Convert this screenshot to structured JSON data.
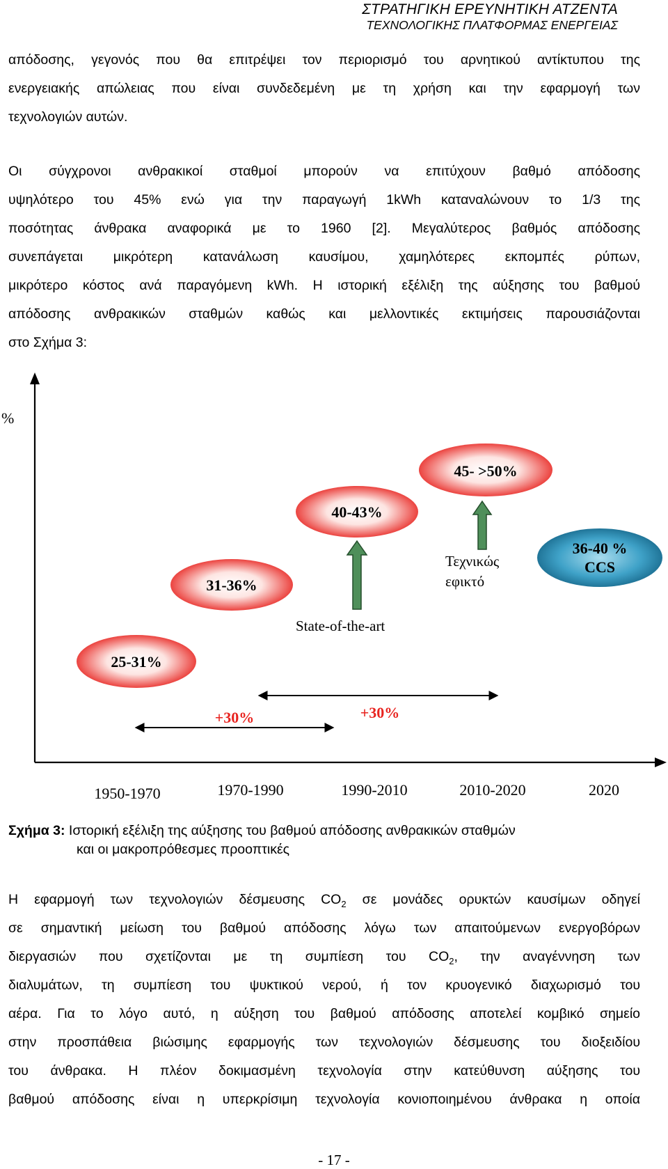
{
  "header": {
    "line1": "ΣΤΡΑΤΗΓΙΚΗ ΕΡΕΥΝΗΤΙΚΗ ΑΤΖΕΝΤΑ",
    "line2": "ΤΕΧΝΟΛΟΓΙΚΗΣ ΠΛΑΤΦΟΡΜΑΣ ΕΝΕΡΓΕΙΑΣ"
  },
  "para1": [
    "απόδοσης, γεγονός που θα επιτρέψει τον περιορισμό του αρνητικού αντίκτυπου της",
    "ενεργειακής απώλειας που είναι συνδεδεμένη με τη χρήση και την εφαρμογή των",
    "τεχνολογιών αυτών."
  ],
  "para2": [
    "Οι σύγχρονοι ανθρακικοί σταθμοί μπορούν να επιτύχουν βαθμό απόδοσης",
    "υψηλότερο του 45% ενώ για την παραγωγή 1kWh καταναλώνουν το 1/3 της",
    "ποσότητας άνθρακα αναφορικά με το 1960 [2]. Μεγαλύτερος βαθμός απόδοσης",
    "συνεπάγεται μικρότερη κατανάλωση καυσίμου, χαμηλότερες εκπομπές ρύπων,",
    "μικρότερο κόστος ανά παραγόμενη kWh. Η ιστορική εξέλιξη της αύξησης του βαθμού",
    "απόδοσης ανθρακικών σταθμών καθώς και μελλοντικές εκτιμήσεις παρουσιάζονται",
    "στο Σχήμα 3:"
  ],
  "figure": {
    "y_axis_label": "%",
    "bubbles": {
      "b1": "25-31%",
      "b2": "31-36%",
      "b3": "40-43%",
      "b4": "45- >50%",
      "b5_line1": "36-40 %",
      "b5_line2": "CCS"
    },
    "annotations": {
      "state_of_art": "State-of-the-art",
      "feasible_line1": "Τεχνικώς",
      "feasible_line2": "εφικτό",
      "gain1": "+30%",
      "gain2": "+30%"
    },
    "periods": [
      "1950-1970",
      "1970-1990",
      "1990-2010",
      "2010-2020",
      "2020"
    ],
    "colors": {
      "red_bubble": "#e8231f",
      "blue_bubble": "#1a7fa8",
      "green_arrow": "#4f8f5a"
    }
  },
  "caption": {
    "label": "Σχήμα 3:",
    "line1": " Ιστορική εξέλιξη της αύξησης του βαθμού απόδοσης ανθρακικών σταθμών",
    "line2": "και οι μακροπρόθεσμες προοπτικές"
  },
  "para3": [
    {
      "pre": "Η εφαρμογή των τεχνολογιών δέσμευσης CO",
      "sub": "2",
      "post": " σε μονάδες ορυκτών καυσίμων οδηγεί"
    },
    {
      "pre": "σε σημαντική μείωση του βαθμού απόδοσης λόγω των απαιτούμενων ενεργοβόρων",
      "sub": "",
      "post": ""
    },
    {
      "pre": "διεργασιών που σχετίζονται με τη συμπίεση του CO",
      "sub": "2",
      "post": ", την αναγέννηση των"
    },
    {
      "pre": "διαλυμάτων, τη συμπίεση του ψυκτικού νερού, ή τον κρυογενικό διαχωρισμό του",
      "sub": "",
      "post": ""
    },
    {
      "pre": "αέρα. Για το λόγο αυτό, η αύξηση του βαθμού απόδοσης αποτελεί κομβικό σημείο",
      "sub": "",
      "post": ""
    },
    {
      "pre": "στην προσπάθεια βιώσιμης εφαρμογής των τεχνολογιών δέσμευσης του διοξειδίου",
      "sub": "",
      "post": ""
    },
    {
      "pre": "του άνθρακα. Η πλέον δοκιμασμένη τεχνολογία στην κατεύθυνση αύξησης του",
      "sub": "",
      "post": ""
    },
    {
      "pre": "βαθμού απόδοσης είναι η υπερκρίσιμη τεχνολογία κονιοποιημένου άνθρακα η οποία",
      "sub": "",
      "post": ""
    }
  ],
  "page_number": "- 17 -"
}
